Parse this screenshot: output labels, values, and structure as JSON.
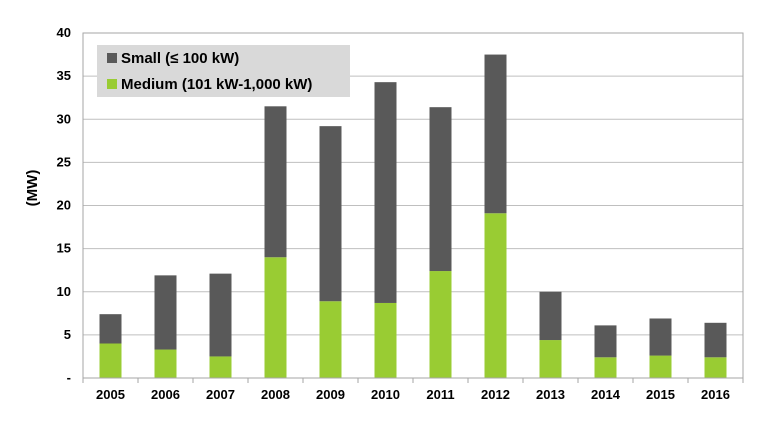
{
  "chart_data": {
    "type": "bar",
    "stacked": true,
    "categories": [
      "2005",
      "2006",
      "2007",
      "2008",
      "2009",
      "2010",
      "2011",
      "2012",
      "2013",
      "2014",
      "2015",
      "2016"
    ],
    "series": [
      {
        "name": "Medium (101 kW-1,000 kW)",
        "color": "#99cc33",
        "values": [
          4.0,
          3.3,
          2.5,
          14.0,
          8.9,
          8.7,
          12.4,
          19.1,
          4.4,
          2.4,
          2.6,
          2.4
        ]
      },
      {
        "name": "Small (≤ 100 kW)",
        "color": "#595959",
        "values": [
          3.4,
          8.6,
          9.6,
          17.5,
          20.3,
          25.6,
          19.0,
          18.4,
          5.6,
          3.7,
          4.3,
          4.0
        ]
      }
    ],
    "title": "",
    "xlabel": "",
    "ylabel": "(MW)",
    "ylim": [
      0,
      40
    ],
    "yticks": [
      0,
      5,
      10,
      15,
      20,
      25,
      30,
      35,
      40
    ],
    "ytick_labels": [
      "-",
      "5",
      "10",
      "15",
      "20",
      "25",
      "30",
      "35",
      "40"
    ],
    "grid": true,
    "legend_position": "top-left",
    "legend_order": [
      "Small (≤ 100 kW)",
      "Medium (101 kW-1,000 kW)"
    ],
    "legend_background": "#d9d9d9",
    "plot_border_color": "#a6a6a6",
    "grid_color": "#bfbfbf"
  }
}
